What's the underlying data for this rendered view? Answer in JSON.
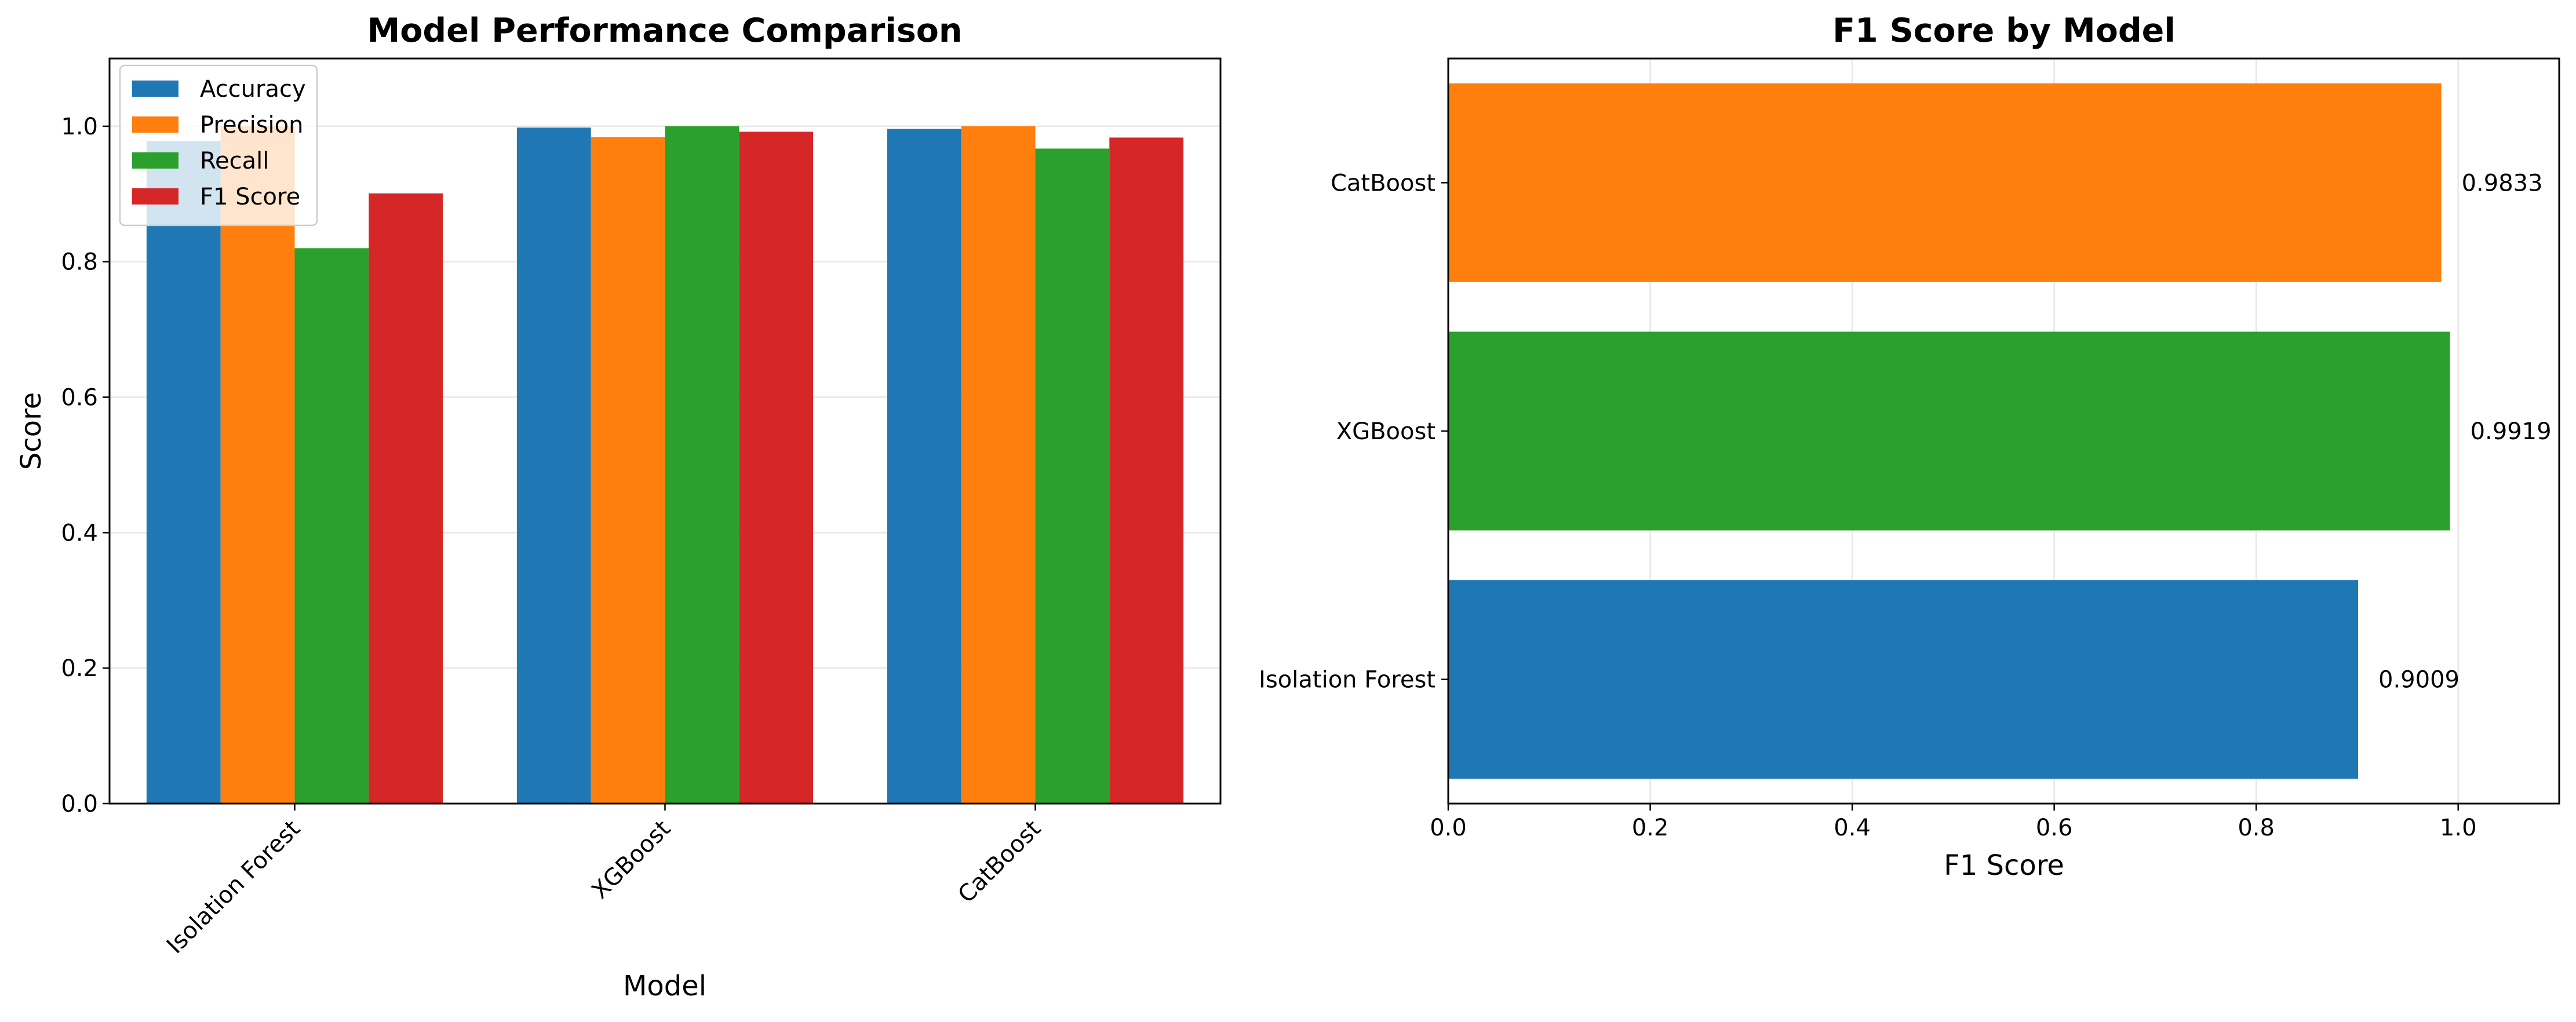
{
  "chart_data": [
    {
      "type": "bar",
      "title": "Model Performance Comparison",
      "xlabel": "Model",
      "ylabel": "Score",
      "categories": [
        "Isolation Forest",
        "XGBoost",
        "CatBoost"
      ],
      "series": [
        {
          "name": "Accuracy",
          "color": "#1f77b4",
          "values": [
            0.978,
            0.998,
            0.996
          ]
        },
        {
          "name": "Precision",
          "color": "#ff7f0e",
          "values": [
            1.0,
            0.984,
            1.0
          ]
        },
        {
          "name": "Recall",
          "color": "#2ca02c",
          "values": [
            0.82,
            1.0,
            0.967
          ]
        },
        {
          "name": "F1 Score",
          "color": "#d62728",
          "values": [
            0.9009,
            0.9919,
            0.9833
          ]
        }
      ],
      "ylim": [
        0,
        1.1
      ],
      "yticks": [
        "0.0",
        "0.2",
        "0.4",
        "0.6",
        "0.8",
        "1.0"
      ],
      "grid": true,
      "legend": "upper-left"
    },
    {
      "type": "bar",
      "orientation": "horizontal",
      "title": "F1 Score by Model",
      "xlabel": "F1 Score",
      "ylabel": "",
      "categories": [
        "Isolation Forest",
        "XGBoost",
        "CatBoost"
      ],
      "values": [
        0.9009,
        0.9919,
        0.9833
      ],
      "value_labels": [
        "0.9009",
        "0.9919",
        "0.9833"
      ],
      "colors": [
        "#1f77b4",
        "#2ca02c",
        "#ff7f0e"
      ],
      "xlim": [
        0,
        1.1
      ],
      "xticks": [
        "0.0",
        "0.2",
        "0.4",
        "0.6",
        "0.8",
        "1.0"
      ],
      "grid": true
    }
  ]
}
